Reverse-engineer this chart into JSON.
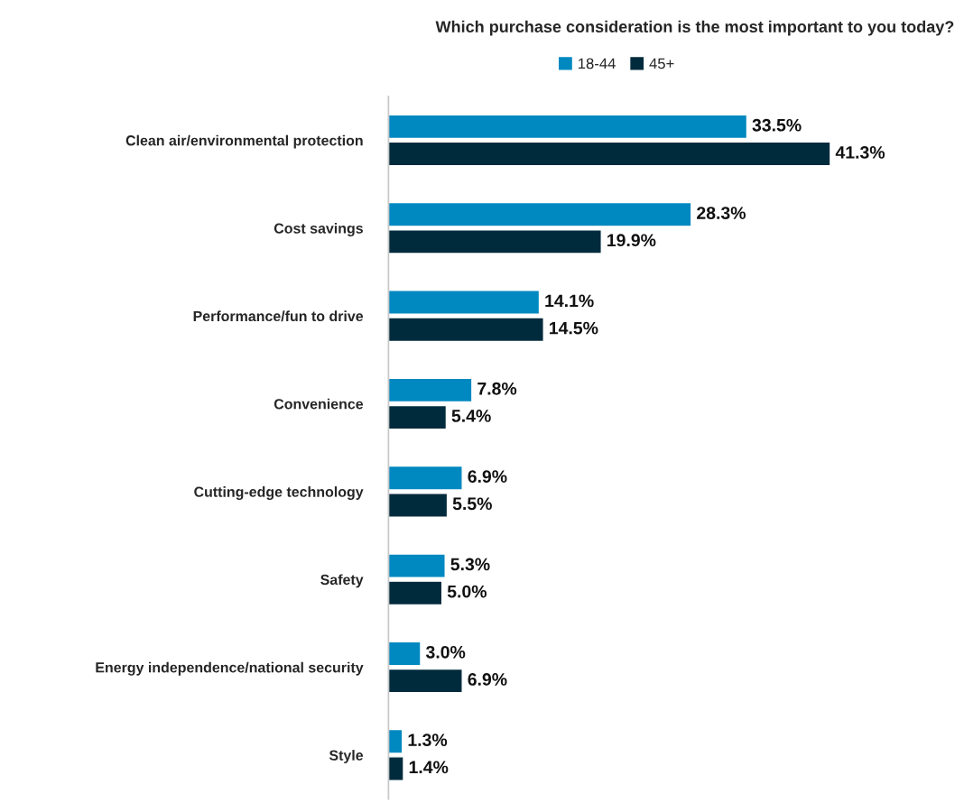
{
  "chart_data": {
    "type": "bar",
    "orientation": "horizontal",
    "title": "Which purchase consideration is the most important to you today?",
    "categories": [
      "Clean air/environmental protection",
      "Cost savings",
      "Performance/fun to drive",
      "Convenience",
      "Cutting-edge technology",
      "Safety",
      "Energy independence/national security",
      "Style"
    ],
    "series": [
      {
        "name": "18-44",
        "color": "#0088c0",
        "values": [
          33.5,
          28.3,
          14.1,
          7.8,
          6.9,
          5.3,
          3.0,
          1.3
        ],
        "value_labels": [
          "33.5%",
          "28.3%",
          "14.1%",
          "7.8%",
          "6.9%",
          "5.3%",
          "3.0%",
          "1.3%"
        ]
      },
      {
        "name": "45+",
        "color": "#002b3d",
        "values": [
          41.3,
          19.9,
          14.5,
          5.4,
          5.5,
          5.0,
          6.9,
          1.4
        ],
        "value_labels": [
          "41.3%",
          "19.9%",
          "14.5%",
          "5.4%",
          "5.5%",
          "5.0%",
          "6.9%",
          "1.4%"
        ]
      }
    ],
    "legend": "top",
    "grid": false
  }
}
